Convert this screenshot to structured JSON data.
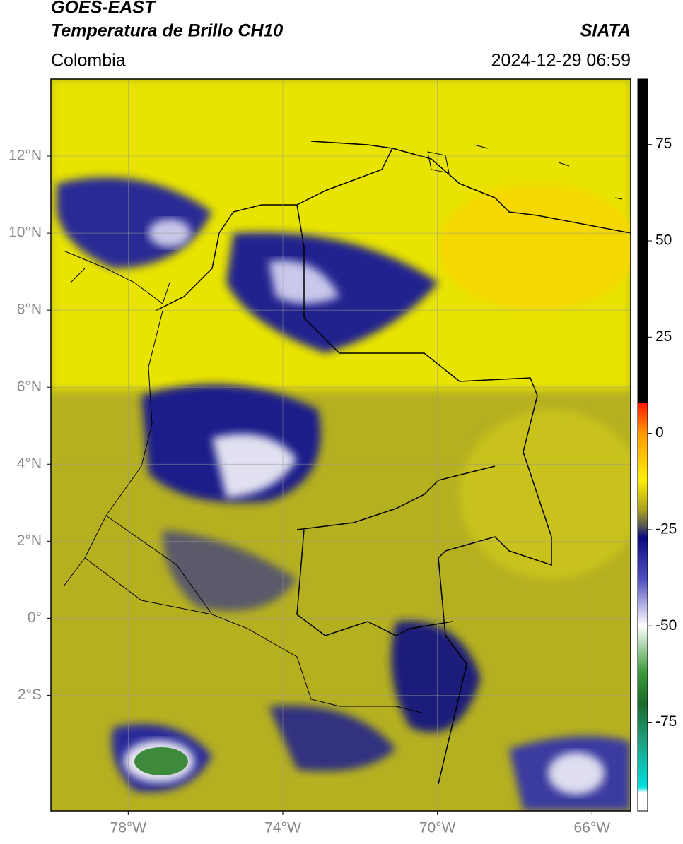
{
  "header": {
    "satellite": "GOES-EAST",
    "product": "Temperatura de Brillo CH10",
    "agency": "SIATA",
    "region": "Colombia",
    "datetime": "2024-12-29 06:59"
  },
  "map": {
    "xlim": [
      -80,
      -65
    ],
    "ylim": [
      -5,
      14
    ],
    "xticks": [
      {
        "value": -78,
        "label": "78°W"
      },
      {
        "value": -74,
        "label": "74°W"
      },
      {
        "value": -70,
        "label": "70°W"
      },
      {
        "value": -66,
        "label": "66°W"
      }
    ],
    "yticks": [
      {
        "value": 12,
        "label": "12°N"
      },
      {
        "value": 10,
        "label": "10°N"
      },
      {
        "value": 8,
        "label": "8°N"
      },
      {
        "value": 6,
        "label": "6°N"
      },
      {
        "value": 4,
        "label": "4°N"
      },
      {
        "value": 2,
        "label": "2°N"
      },
      {
        "value": 0,
        "label": "0°"
      },
      {
        "value": -2,
        "label": "2°S"
      }
    ],
    "grid": true
  },
  "colorbar": {
    "clim": [
      -98,
      92
    ],
    "ticks": [
      75,
      50,
      25,
      0,
      -25,
      -50,
      -75
    ]
  }
}
